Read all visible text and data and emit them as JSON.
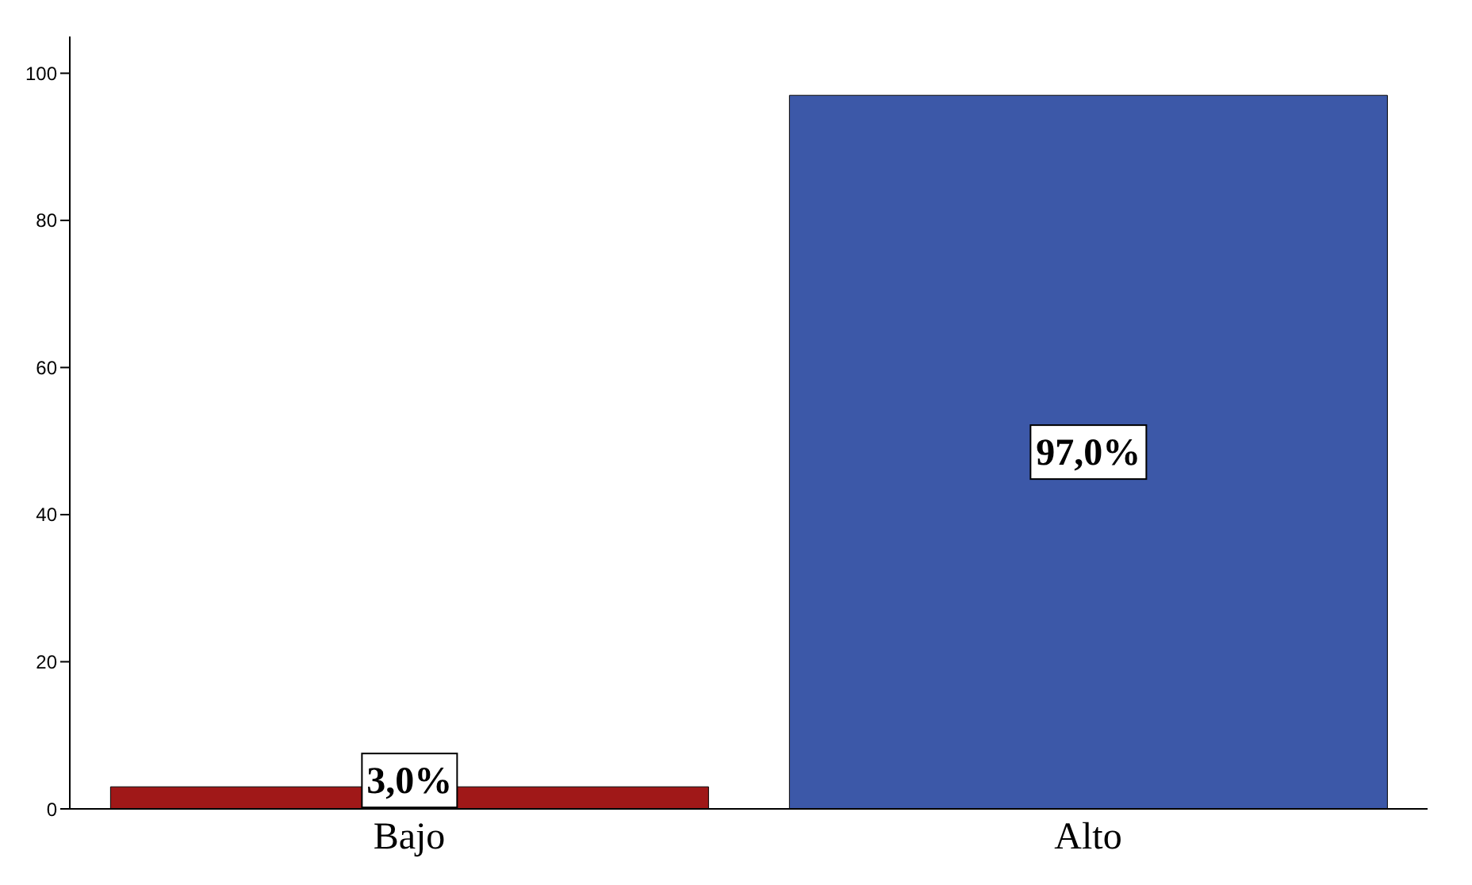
{
  "chart_data": {
    "type": "bar",
    "categories": [
      "Bajo",
      "Alto"
    ],
    "values": [
      3.0,
      97.0
    ],
    "colors": [
      "#a01818",
      "#3c58a8"
    ],
    "value_labels": [
      "3,0%",
      "97,0%"
    ],
    "ylim": [
      0,
      105
    ],
    "yticks": [
      0,
      20,
      40,
      60,
      80,
      100
    ],
    "grid": false
  }
}
